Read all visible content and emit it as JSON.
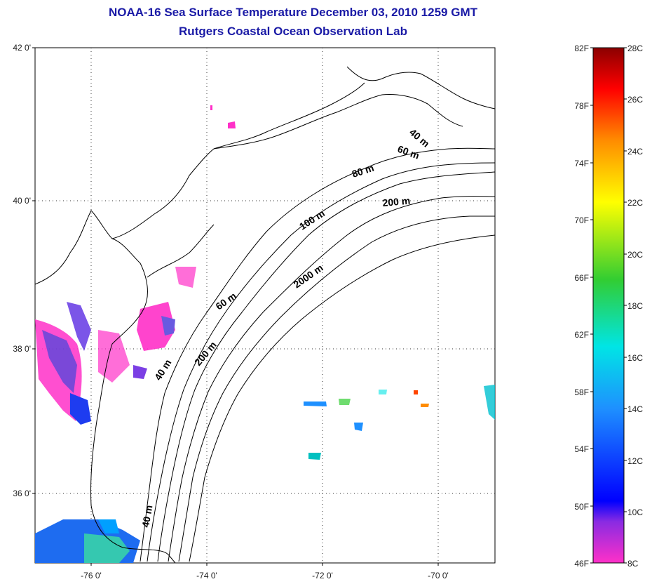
{
  "title": "NOAA-16 Sea Surface Temperature December 03, 2010 1259 GMT",
  "subtitle": "Rutgers Coastal Ocean Observation Lab",
  "map": {
    "lat_labels": [
      "42 0'",
      "40 0'",
      "38 0'",
      "36 0'"
    ],
    "lon_labels": [
      "-76 0'",
      "-74 0'",
      "-72 0'",
      "-70 0'"
    ],
    "grid": true,
    "contour_labels": [
      "40 m",
      "60 m",
      "80 m",
      "200 m",
      "100 m",
      "2000 m",
      "60 m",
      "40 m",
      "200 m",
      "40 m"
    ]
  },
  "colorbar": {
    "f_labels": [
      "82F",
      "78F",
      "74F",
      "70F",
      "66F",
      "62F",
      "58F",
      "54F",
      "50F",
      "46F"
    ],
    "c_labels": [
      "28C",
      "26C",
      "24C",
      "22C",
      "20C",
      "18C",
      "16C",
      "14C",
      "12C",
      "10C",
      "8C"
    ],
    "colors": [
      "#8b0000",
      "#ff0000",
      "#ff8c00",
      "#ffff00",
      "#32cd32",
      "#00e5e5",
      "#1e90ff",
      "#0000ff",
      "#8a2be2",
      "#ff1493"
    ]
  }
}
